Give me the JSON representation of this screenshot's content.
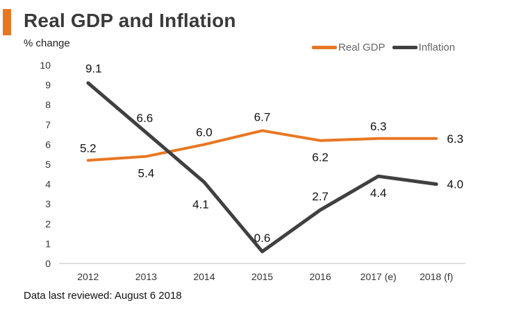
{
  "title": "Real GDP and Inflation",
  "footer": "Data  last reviewed: August 6 2018",
  "colors": {
    "accent": "#E87722",
    "gdp": "#E87722",
    "inflation": "#404040",
    "axis": "#bfbfbf"
  },
  "chart_data": {
    "type": "line",
    "title": "Real GDP and Inflation",
    "xlabel": "",
    "ylabel": "% change",
    "ylim": [
      0,
      10
    ],
    "yticks": [
      0,
      1,
      2,
      3,
      4,
      5,
      6,
      7,
      8,
      9,
      10
    ],
    "categories": [
      "2012",
      "2013",
      "2014",
      "2015",
      "2016",
      "2017 (e)",
      "2018 (f)"
    ],
    "legend_position": "top-right",
    "series": [
      {
        "name": "Real GDP",
        "color": "#E87722",
        "values": [
          5.2,
          5.4,
          6.0,
          6.7,
          6.2,
          6.3,
          6.3
        ],
        "labels": [
          "5.2",
          "5.4",
          "6.0",
          "6.7",
          "6.2",
          "6.3",
          "6.3"
        ]
      },
      {
        "name": "Inflation",
        "color": "#404040",
        "values": [
          9.1,
          6.6,
          4.1,
          0.6,
          2.7,
          4.4,
          4.0
        ],
        "labels": [
          "9.1",
          "6.6",
          "4.1",
          "0.6",
          "2.7",
          "4.4",
          "4.0"
        ]
      }
    ]
  }
}
